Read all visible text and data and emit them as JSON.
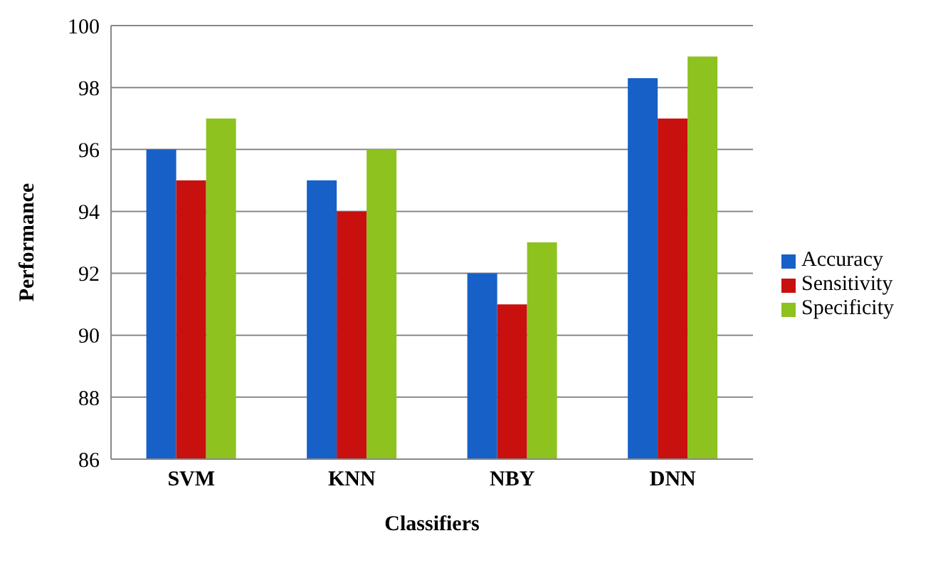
{
  "chart_data": {
    "type": "bar",
    "xlabel": "Classifiers",
    "ylabel": "Performance",
    "categories": [
      "SVM",
      "KNN",
      "NBY",
      "DNN"
    ],
    "series": [
      {
        "name": "Accuracy",
        "color": "#1660c8",
        "values": [
          96,
          95,
          92,
          98.3
        ]
      },
      {
        "name": "Sensitivity",
        "color": "#c8100e",
        "values": [
          95,
          94,
          91,
          97
        ]
      },
      {
        "name": "Specificity",
        "color": "#8dc21f",
        "values": [
          97,
          96,
          93,
          99
        ]
      }
    ],
    "ylim": [
      86,
      100
    ],
    "yticks": [
      86,
      88,
      90,
      92,
      94,
      96,
      98,
      100
    ],
    "grid": "y",
    "legend": "right"
  }
}
